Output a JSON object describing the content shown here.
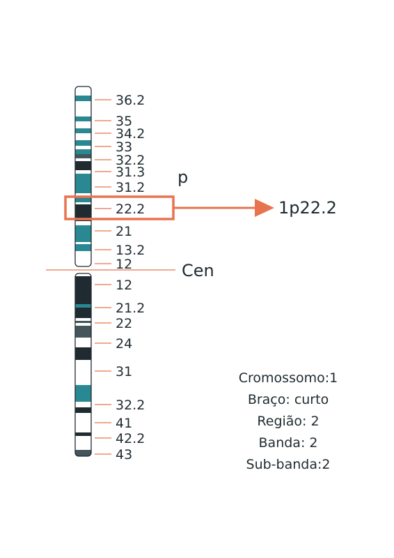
{
  "colors": {
    "dark_band": "#1f2b30",
    "teal_band": "#2a8893",
    "gray_band": "#44555c",
    "light_band": "#ffffff",
    "outline": "#1f2b30",
    "accent": "#e8734f",
    "text": "#1e2a30"
  },
  "chromosome": {
    "p_arm_bands": [
      {
        "type": "white"
      },
      {
        "type": "teal"
      },
      {
        "type": "white"
      },
      {
        "type": "teal"
      },
      {
        "type": "white"
      },
      {
        "type": "teal"
      },
      {
        "type": "white"
      },
      {
        "type": "teal"
      },
      {
        "type": "white"
      },
      {
        "type": "teal"
      },
      {
        "type": "gray"
      },
      {
        "type": "white"
      },
      {
        "type": "dark"
      },
      {
        "type": "white"
      },
      {
        "type": "teal"
      },
      {
        "type": "white"
      },
      {
        "type": "teal"
      },
      {
        "type": "white"
      },
      {
        "type": "dark"
      },
      {
        "type": "white"
      },
      {
        "type": "teal"
      },
      {
        "type": "white"
      },
      {
        "type": "teal"
      },
      {
        "type": "white"
      }
    ],
    "q_arm_bands": [
      {
        "type": "white"
      },
      {
        "type": "dark"
      },
      {
        "type": "teal"
      },
      {
        "type": "dark"
      },
      {
        "type": "white"
      },
      {
        "type": "gray"
      },
      {
        "type": "white"
      },
      {
        "type": "gray"
      },
      {
        "type": "white"
      },
      {
        "type": "dark"
      },
      {
        "type": "white"
      },
      {
        "type": "teal"
      },
      {
        "type": "white"
      },
      {
        "type": "dark"
      },
      {
        "type": "white"
      },
      {
        "type": "dark"
      },
      {
        "type": "white"
      },
      {
        "type": "gray"
      }
    ],
    "p_labels": [
      "36.2",
      "35",
      "34.2",
      "33",
      "32.2",
      "31.3",
      "31.2",
      "22.2",
      "21",
      "13.2",
      "12"
    ],
    "q_labels": [
      "12",
      "21.2",
      "22",
      "24",
      "31",
      "32.2",
      "41",
      "42.2",
      "43"
    ],
    "centromere_label": "Cen",
    "arm_label": "p",
    "highlight_label": "1p22.2"
  },
  "info": {
    "lines": [
      "Cromossomo:1",
      "Braço: curto",
      "Região: 2",
      "Banda: 2",
      "Sub-banda:2"
    ]
  }
}
